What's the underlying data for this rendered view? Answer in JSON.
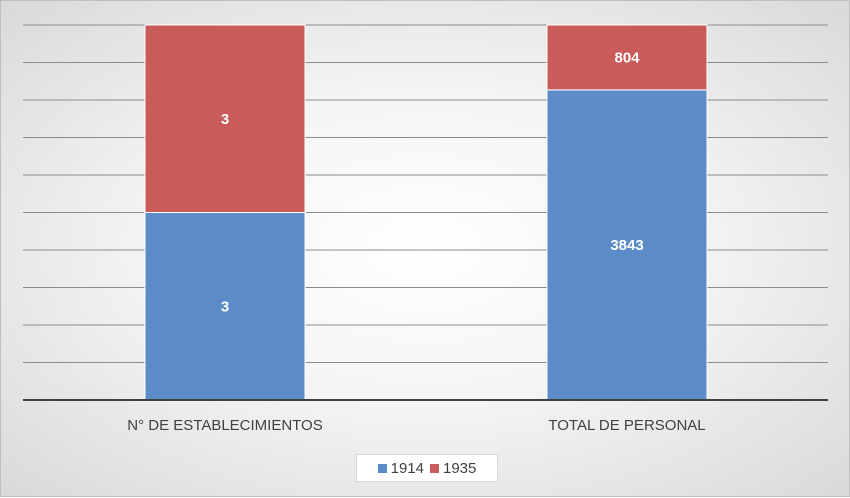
{
  "chart_data": {
    "type": "bar",
    "stacked": true,
    "normalized": true,
    "categories": [
      "N° DE ESTABLECIMIENTOS",
      "TOTAL DE PERSONAL"
    ],
    "series": [
      {
        "name": "1914",
        "values": [
          3,
          3843
        ],
        "color": "#5b8cc8"
      },
      {
        "name": "1935",
        "values": [
          3,
          804
        ],
        "color": "#c95c5a"
      }
    ],
    "gridlines": 10,
    "grid": true,
    "legend": "bottom",
    "title": "",
    "xlabel": "",
    "ylabel": ""
  }
}
